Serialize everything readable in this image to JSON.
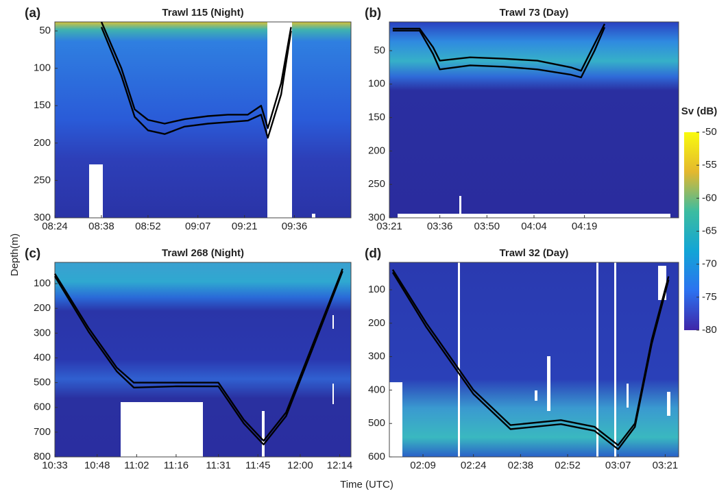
{
  "chart_data": [
    {
      "type": "line",
      "panel_label": "(a)",
      "title": "Trawl 115 (Night)",
      "xlim": [
        "08:24",
        "09:53"
      ],
      "xticks": [
        "08:24",
        "08:38",
        "08:52",
        "09:07",
        "09:21",
        "09:36"
      ],
      "ylim": [
        38,
        300
      ],
      "yticks": [
        50,
        100,
        150,
        200,
        250,
        300
      ],
      "y_reversed": true,
      "series": [
        {
          "color": "#000000",
          "x": [
            "08:38",
            "08:44",
            "08:48",
            "08:52",
            "08:57",
            "09:03",
            "09:10",
            "09:16",
            "09:22",
            "09:26",
            "09:28",
            "09:32",
            "09:35"
          ],
          "values": [
            38,
            100,
            155,
            169,
            174,
            168,
            164,
            162,
            162,
            150,
            180,
            120,
            45
          ]
        },
        {
          "color": "#000000",
          "x": [
            "08:38",
            "08:44",
            "08:48",
            "08:52",
            "08:57",
            "09:03",
            "09:10",
            "09:16",
            "09:22",
            "09:26",
            "09:28",
            "09:32",
            "09:35"
          ],
          "values": [
            45,
            110,
            165,
            183,
            188,
            178,
            174,
            172,
            170,
            162,
            193,
            135,
            50
          ]
        }
      ]
    },
    {
      "type": "line",
      "panel_label": "(b)",
      "title": "Trawl 73 (Day)",
      "xlim": [
        "03:21",
        "04:47"
      ],
      "xticks": [
        "03:21",
        "03:36",
        "03:50",
        "04:04",
        "04:19"
      ],
      "ylim": [
        7,
        300
      ],
      "yticks": [
        50,
        100,
        150,
        200,
        250,
        300
      ],
      "y_reversed": true,
      "series": [
        {
          "color": "#000000",
          "x": [
            "03:22",
            "03:30",
            "03:34",
            "03:36",
            "03:45",
            "03:55",
            "04:05",
            "04:15",
            "04:18",
            "04:22",
            "04:25"
          ],
          "values": [
            17,
            17,
            45,
            65,
            60,
            62,
            65,
            75,
            80,
            40,
            10
          ]
        },
        {
          "color": "#000000",
          "x": [
            "03:22",
            "03:30",
            "03:34",
            "03:36",
            "03:45",
            "03:55",
            "04:05",
            "04:15",
            "04:18",
            "04:22",
            "04:25"
          ],
          "values": [
            20,
            20,
            55,
            78,
            72,
            74,
            78,
            86,
            90,
            50,
            15
          ]
        }
      ]
    },
    {
      "type": "line",
      "panel_label": "(c)",
      "title": "Trawl 268 (Night)",
      "xlim": [
        "10:33",
        "12:18"
      ],
      "xticks": [
        "10:33",
        "10:48",
        "11:02",
        "11:16",
        "11:31",
        "11:45",
        "12:00",
        "12:14"
      ],
      "ylim": [
        14,
        800
      ],
      "yticks": [
        100,
        200,
        300,
        400,
        500,
        600,
        700,
        800
      ],
      "y_reversed": true,
      "series": [
        {
          "color": "#000000",
          "x": [
            "10:33",
            "10:45",
            "10:55",
            "11:01",
            "11:16",
            "11:31",
            "11:40",
            "11:47",
            "11:55",
            "12:05",
            "12:15"
          ],
          "values": [
            60,
            280,
            440,
            500,
            500,
            500,
            650,
            735,
            620,
            330,
            40
          ]
        },
        {
          "color": "#000000",
          "x": [
            "10:33",
            "10:45",
            "10:55",
            "11:01",
            "11:16",
            "11:31",
            "11:40",
            "11:47",
            "11:55",
            "12:05",
            "12:15"
          ],
          "values": [
            70,
            295,
            455,
            520,
            515,
            515,
            665,
            750,
            635,
            345,
            50
          ]
        }
      ]
    },
    {
      "type": "line",
      "panel_label": "(d)",
      "title": "Trawl 32 (Day)",
      "xlim": [
        "01:59",
        "03:25"
      ],
      "xticks": [
        "02:09",
        "02:24",
        "02:38",
        "02:52",
        "03:07",
        "03:21"
      ],
      "ylim": [
        18,
        600
      ],
      "yticks": [
        100,
        200,
        300,
        400,
        500,
        600
      ],
      "y_reversed": true,
      "series": [
        {
          "color": "#000000",
          "x": [
            "02:00",
            "02:10",
            "02:24",
            "02:35",
            "02:50",
            "03:00",
            "03:07",
            "03:12",
            "03:17",
            "03:22"
          ],
          "values": [
            40,
            200,
            400,
            505,
            490,
            510,
            565,
            500,
            250,
            60
          ]
        },
        {
          "color": "#000000",
          "x": [
            "02:00",
            "02:10",
            "02:24",
            "02:35",
            "02:50",
            "03:00",
            "03:07",
            "03:12",
            "03:17",
            "03:22"
          ],
          "values": [
            48,
            212,
            412,
            517,
            502,
            522,
            577,
            510,
            262,
            70
          ]
        }
      ]
    }
  ],
  "y_label": "Depth(m)",
  "x_label": "Time (UTC)",
  "colorbar": {
    "label": "Sv (dB)",
    "lim": [
      -80,
      -50
    ],
    "ticks": [
      -50,
      -55,
      -60,
      -65,
      -70,
      -75,
      -80
    ]
  }
}
